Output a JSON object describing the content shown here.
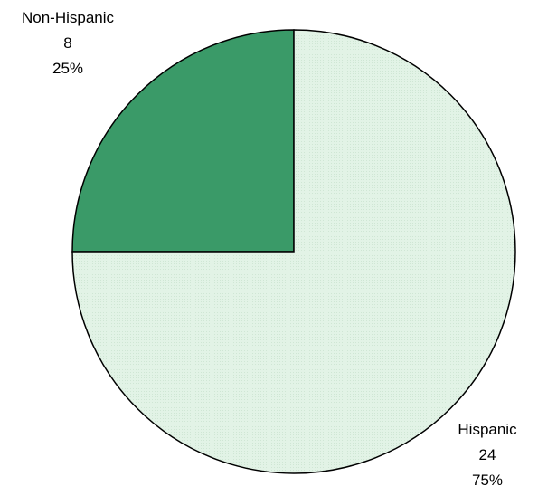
{
  "chart_data": {
    "type": "pie",
    "title": "",
    "slices": [
      {
        "name": "Non-Hispanic",
        "value": 8,
        "percent_label": "25%",
        "color": "#3a9a68"
      },
      {
        "name": "Hispanic",
        "value": 24,
        "percent_label": "75%",
        "color": "#e2f3e6"
      }
    ],
    "legend": "none",
    "start_angle": "12 o'clock",
    "direction": "counterclockwise",
    "outline_color": "#000000",
    "label_position": "outside"
  }
}
